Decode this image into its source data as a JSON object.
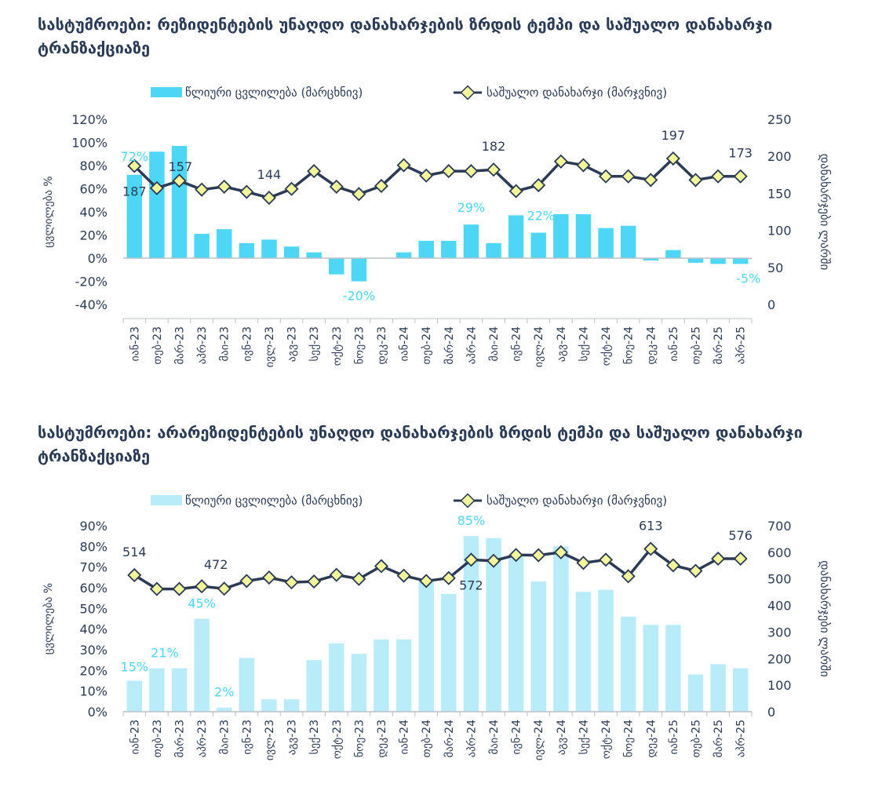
{
  "chart_data": [
    {
      "type": "bar+line",
      "title": "სასტუმროები: რეზიდენტების უნაღდო დანახარჯების ზრდის ტემპი და საშუალო დანახარჯი ტრანზაქციაზე",
      "ylabel": "ცვლილება %",
      "y2label": "დანახარჯები ლარში",
      "ylim": [
        -40,
        120
      ],
      "y2lim": [
        0,
        250
      ],
      "yticks": [
        "120%",
        "100%",
        "80%",
        "60%",
        "40%",
        "20%",
        "0%",
        "-20%",
        "-40%"
      ],
      "y2ticks": [
        "250",
        "200",
        "150",
        "100",
        "50",
        "0"
      ],
      "grid": false,
      "legend_position": "top-center",
      "colors": {
        "bars": "#4dd6f5",
        "line": "#2b3a55",
        "marker": "#f3f79a"
      },
      "categories": [
        "იან-23",
        "თებ-23",
        "მარ-23",
        "აპრ-23",
        "მაი-23",
        "ივნ-23",
        "ივლ-23",
        "აგვ-23",
        "სექ-23",
        "ოქტ-23",
        "ნოე-23",
        "დეკ-23",
        "იან-24",
        "თებ-24",
        "მარ-24",
        "აპრ-24",
        "მაი-24",
        "ივნ-24",
        "ივლ-24",
        "აგვ-24",
        "სექ-24",
        "ოქტ-24",
        "ნოე-24",
        "დეკ-24",
        "იან-25",
        "თებ-25",
        "მარ-25",
        "აპრ-25"
      ],
      "series": [
        {
          "name": "წლიური ცვლილება (მარცხნივ)",
          "type": "bar",
          "axis": "left",
          "values": [
            72,
            92,
            97,
            21,
            25,
            13,
            16,
            10,
            5,
            -14,
            -20,
            0,
            5,
            15,
            15,
            29,
            13,
            37,
            22,
            38,
            38,
            26,
            28,
            -2,
            7,
            -4,
            -5,
            -5
          ]
        },
        {
          "name": "საშუალო დანახარჯი (მარჯვნივ)",
          "type": "line",
          "axis": "right",
          "values": [
            187,
            157,
            167,
            155,
            159,
            152,
            144,
            156,
            180,
            159,
            149,
            160,
            188,
            174,
            180,
            180,
            182,
            153,
            161,
            193,
            188,
            173,
            173,
            168,
            197,
            168,
            173,
            173
          ]
        }
      ],
      "bar_labels": [
        "72%",
        "22%",
        "29%",
        "-20%",
        "-5%"
      ],
      "line_labels": [
        "187",
        "157",
        "144",
        "182",
        "197",
        "173"
      ]
    },
    {
      "type": "bar+line",
      "title": "სასტუმროები: არარეზიდენტების უნაღდო დანახარჯების ზრდის ტემპი და საშუალო დანახარჯი ტრანზაქციაზე",
      "ylabel": "ცვლილება %",
      "y2label": "დანახარჯები ლარში",
      "ylim": [
        0,
        90
      ],
      "y2lim": [
        0,
        700
      ],
      "yticks": [
        "90%",
        "80%",
        "70%",
        "60%",
        "50%",
        "40%",
        "30%",
        "20%",
        "10%",
        "0%"
      ],
      "y2ticks": [
        "700",
        "600",
        "500",
        "400",
        "300",
        "200",
        "100",
        "0"
      ],
      "grid": false,
      "legend_position": "top-center",
      "colors": {
        "bars": "#b8ecf8",
        "line": "#2b3a55",
        "marker": "#f3f79a"
      },
      "categories": [
        "იან-23",
        "თებ-23",
        "მარ-23",
        "აპრ-23",
        "მაი-23",
        "ივნ-23",
        "ივლ-23",
        "აგვ-23",
        "სექ-23",
        "ოქტ-23",
        "ნოე-23",
        "დეკ-23",
        "იან-24",
        "თებ-24",
        "მარ-24",
        "აპრ-24",
        "მაი-24",
        "ივნ-24",
        "ივლ-24",
        "აგვ-24",
        "სექ-24",
        "ოქტ-24",
        "ნოე-24",
        "დეკ-24",
        "იან-25",
        "თებ-25",
        "მარ-25",
        "აპრ-25"
      ],
      "series": [
        {
          "name": "წლიური ცვლილება (მარცხნივ)",
          "type": "bar",
          "axis": "left",
          "values": [
            15,
            21,
            21,
            45,
            2,
            26,
            6,
            6,
            25,
            33,
            28,
            35,
            35,
            63,
            57,
            85,
            84,
            75,
            63,
            80,
            58,
            59,
            46,
            42,
            42,
            18,
            23,
            21
          ]
        },
        {
          "name": "საშუალო დანახარჯი (მარჯვნივ)",
          "type": "line",
          "axis": "right",
          "values": [
            514,
            462,
            462,
            472,
            463,
            492,
            505,
            487,
            490,
            515,
            500,
            548,
            512,
            492,
            503,
            572,
            568,
            590,
            589,
            600,
            560,
            572,
            510,
            613,
            551,
            530,
            576,
            576
          ]
        }
      ],
      "bar_labels": [
        "15%",
        "45%",
        "2%",
        "85%",
        "21%"
      ],
      "line_labels": [
        "514",
        "472",
        "572",
        "613",
        "576"
      ]
    }
  ]
}
